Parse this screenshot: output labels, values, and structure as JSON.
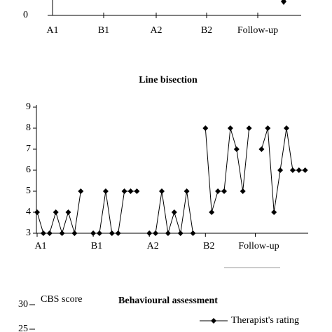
{
  "chart_data": [
    {
      "type": "line",
      "categories": [
        "A1",
        "B1",
        "A2",
        "B2",
        "Follow-up"
      ],
      "yticks": [
        0
      ]
    },
    {
      "type": "line",
      "title": "Line bisection",
      "x": [
        1,
        2,
        3,
        4,
        5,
        6,
        7,
        8,
        9,
        10,
        11,
        12,
        13,
        14,
        15,
        16,
        17,
        18,
        19,
        20,
        21,
        22,
        23,
        24,
        25,
        26,
        27,
        28,
        29,
        30,
        31,
        32,
        33,
        34,
        35,
        36,
        37,
        38,
        39,
        40,
        41,
        42,
        43,
        44
      ],
      "series": [
        {
          "color": "#000000",
          "values": [
            4,
            3,
            3,
            4,
            3,
            4,
            3,
            5,
            null,
            3,
            3,
            5,
            3,
            3,
            5,
            5,
            5,
            null,
            3,
            3,
            5,
            3,
            4,
            3,
            5,
            3,
            null,
            8,
            4,
            5,
            5,
            8,
            7,
            5,
            8,
            null,
            7,
            8,
            4,
            6,
            8,
            6,
            6,
            6
          ]
        }
      ],
      "xlim": [
        1,
        44
      ],
      "xticks": [
        {
          "value": 1,
          "label": "A1"
        },
        {
          "value": 10,
          "label": "B1"
        },
        {
          "value": 19,
          "label": "A2"
        },
        {
          "value": 28,
          "label": "B2"
        },
        {
          "value": 36,
          "label": "Follow-up"
        }
      ],
      "ylim": [
        3,
        9
      ],
      "yticks": [
        3,
        4,
        5,
        6,
        7,
        8,
        9
      ]
    },
    {
      "type": "line",
      "title": "Behavioural assessment",
      "y_label": "CBS score",
      "yticks": [
        30,
        25
      ],
      "series": [
        {
          "name": "Therapist's rating",
          "color": "#000000"
        }
      ]
    }
  ]
}
